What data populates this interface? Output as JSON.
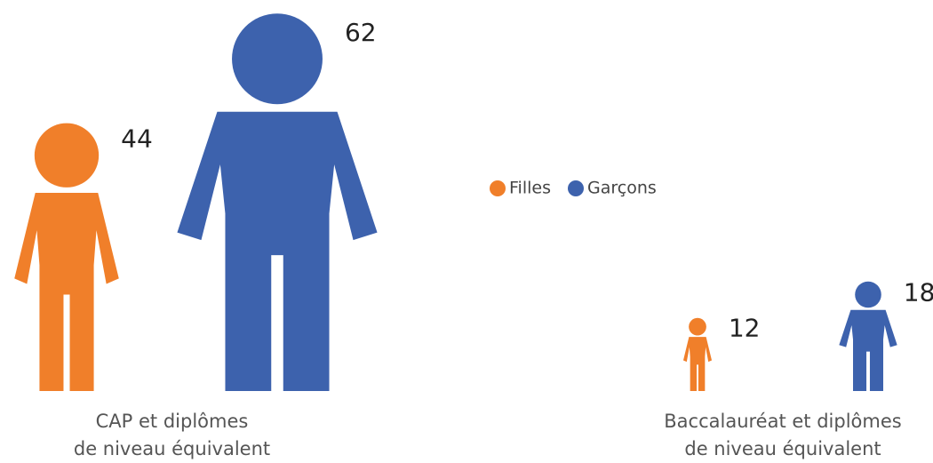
{
  "chart_data": {
    "type": "pictogram",
    "categories": [
      [
        "CAP et diplômes",
        "de niveau équivalent"
      ],
      [
        "Baccalauréat et diplômes",
        "de niveau équivalent"
      ]
    ],
    "series": [
      {
        "name": "Filles",
        "color": "#f07f2a",
        "values": [
          44,
          12
        ]
      },
      {
        "name": "Garçons",
        "color": "#3d62ad",
        "values": [
          62,
          18
        ]
      }
    ]
  }
}
